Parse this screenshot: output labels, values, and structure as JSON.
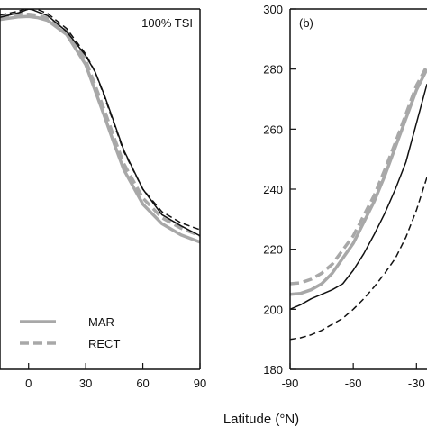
{
  "chart_data": [
    {
      "type": "line",
      "panel_label": "100% TSI",
      "xlabel": "Latitude (°N)",
      "xlim": [
        -15,
        90
      ],
      "ylim": [
        180,
        300
      ],
      "x_ticks": [
        0,
        30,
        60,
        90
      ],
      "x_tick_labels": [
        "0",
        "30",
        "60",
        "90"
      ],
      "legend": {
        "placement": "bottom-left",
        "entries": [
          {
            "label": "MAR",
            "series": "MAR"
          },
          {
            "label": "RECT",
            "series": "RECT"
          }
        ]
      },
      "series": [
        {
          "name": "MAR",
          "color": "#a8a8a8",
          "dash": "solid",
          "x": [
            -15,
            -5,
            0,
            5,
            10,
            20,
            30,
            40,
            45,
            50,
            60,
            70,
            80,
            90
          ],
          "y": [
            296.5,
            297.4,
            297.5,
            297.1,
            296.2,
            291.5,
            281.5,
            264,
            255,
            246.5,
            235,
            228.5,
            224.8,
            222.4
          ]
        },
        {
          "name": "RECT",
          "color": "#a8a8a8",
          "dash": "dashed",
          "x": [
            -15,
            -5,
            0,
            5,
            10,
            20,
            30,
            40,
            45,
            50,
            60,
            70,
            80,
            90
          ],
          "y": [
            297.5,
            298.3,
            298.3,
            297.9,
            297.0,
            292.5,
            283,
            266,
            257,
            248.5,
            237,
            230.5,
            227,
            224.5
          ]
        },
        {
          "name": "",
          "color": "#111111",
          "dash": "solid",
          "x": [
            -15,
            -5,
            0,
            2,
            5,
            10,
            20,
            30,
            35,
            40,
            45,
            50,
            60,
            70,
            80,
            90
          ],
          "y": [
            297.2,
            298.8,
            300.0,
            299.8,
            299.0,
            297.8,
            292.5,
            284.5,
            279,
            271,
            262,
            253,
            240,
            231.5,
            227.8,
            224.5
          ]
        },
        {
          "name": "",
          "color": "#111111",
          "dash": "dashed",
          "x": [
            -15,
            -5,
            0,
            2,
            5,
            10,
            20,
            30,
            35,
            40,
            45,
            50,
            60,
            70,
            80,
            90
          ],
          "y": [
            298.0,
            299.3,
            300.5,
            300.3,
            299.8,
            298.5,
            293.5,
            285,
            279,
            270.5,
            261.5,
            252.5,
            240,
            232.5,
            228.8,
            226.5
          ]
        }
      ]
    },
    {
      "type": "line",
      "panel_label": "(b)",
      "xlim": [
        -90,
        -25
      ],
      "ylim": [
        180,
        300
      ],
      "x_ticks": [
        -90,
        -60,
        -30
      ],
      "x_tick_labels": [
        "-90",
        "-60",
        "-30"
      ],
      "y_ticks": [
        180,
        200,
        220,
        240,
        260,
        280,
        300
      ],
      "y_tick_labels": [
        "180",
        "200",
        "220",
        "240",
        "260",
        "280",
        "300"
      ],
      "series": [
        {
          "name": "MAR",
          "color": "#a8a8a8",
          "dash": "solid",
          "x": [
            -90,
            -85,
            -80,
            -75,
            -70,
            -60,
            -50,
            -45,
            -40,
            -35,
            -30,
            -25
          ],
          "y": [
            205,
            205.3,
            206.5,
            208.5,
            212,
            222,
            236,
            244.5,
            254,
            263.5,
            273,
            280
          ]
        },
        {
          "name": "RECT",
          "color": "#a8a8a8",
          "dash": "dashed",
          "x": [
            -90,
            -85,
            -80,
            -75,
            -70,
            -60,
            -50,
            -45,
            -40,
            -35,
            -30,
            -25
          ],
          "y": [
            208.5,
            208.8,
            210,
            212,
            215,
            224.5,
            238,
            246.5,
            255.5,
            265,
            274.5,
            281
          ]
        },
        {
          "name": "",
          "color": "#111111",
          "dash": "solid",
          "x": [
            -90,
            -85,
            -80,
            -75,
            -70,
            -65,
            -60,
            -55,
            -50,
            -45,
            -40,
            -35,
            -30,
            -25
          ],
          "y": [
            200,
            201.5,
            203.5,
            205,
            206.5,
            208.5,
            213,
            218.5,
            225,
            232,
            240,
            249,
            262,
            275
          ]
        },
        {
          "name": "",
          "color": "#111111",
          "dash": "dashed",
          "x": [
            -90,
            -85,
            -80,
            -75,
            -70,
            -65,
            -60,
            -55,
            -50,
            -45,
            -40,
            -35,
            -30,
            -25
          ],
          "y": [
            190,
            190.5,
            191.5,
            193,
            195,
            197,
            200,
            203.5,
            207.5,
            212,
            217,
            224,
            233,
            244
          ]
        }
      ]
    }
  ]
}
